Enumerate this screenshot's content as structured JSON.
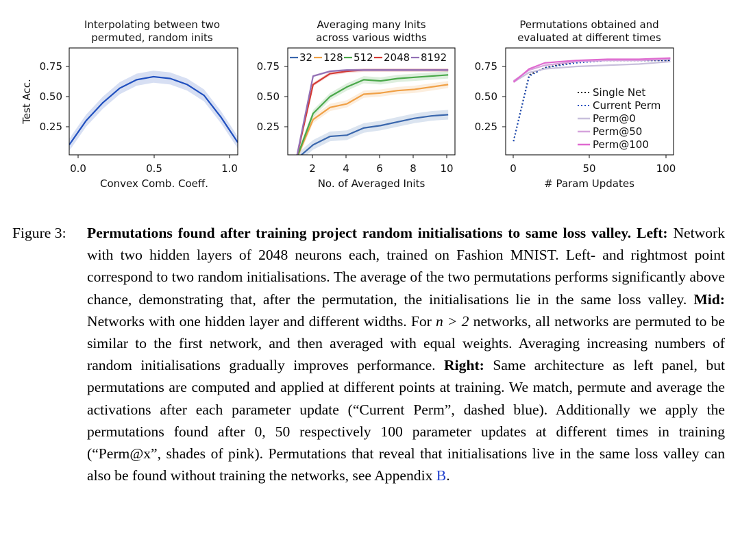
{
  "figure": {
    "panels": [
      {
        "title_line1": "Interpolating between two",
        "title_line2": "permuted, random inits",
        "xlabel": "Convex Comb. Coeff.",
        "ylabel": "Test Acc.",
        "xticks": [
          "0.0",
          "0.5",
          "1.0"
        ],
        "yticks": [
          "0.25",
          "0.50",
          "0.75"
        ]
      },
      {
        "title_line1": "Averaging many Inits",
        "title_line2": "across various widths",
        "xlabel": "No. of Averaged Inits",
        "xticks": [
          "2",
          "4",
          "6",
          "8",
          "10"
        ],
        "yticks": [
          "0.25",
          "0.50",
          "0.75"
        ]
      },
      {
        "title_line1": "Permutations obtained and",
        "title_line2": "evaluated at different times",
        "xlabel": "# Param Updates",
        "xticks": [
          "0",
          "50",
          "100"
        ],
        "yticks": [
          "0.25",
          "0.50",
          "0.75"
        ]
      }
    ]
  },
  "chart_data": [
    {
      "type": "line",
      "title": "Interpolating between two permuted, random inits",
      "xlabel": "Convex Comb. Coeff.",
      "ylabel": "Test Acc.",
      "xlim": [
        0,
        1
      ],
      "ylim": [
        0.0,
        0.88
      ],
      "series": [
        {
          "color": "#1f4fbf",
          "x": [
            0.0,
            0.1,
            0.2,
            0.3,
            0.4,
            0.5,
            0.6,
            0.7,
            0.8,
            0.9,
            1.0
          ],
          "y": [
            0.1,
            0.3,
            0.45,
            0.57,
            0.64,
            0.665,
            0.65,
            0.6,
            0.51,
            0.33,
            0.12
          ],
          "band": 0.05
        }
      ]
    },
    {
      "type": "line",
      "title": "Averaging many Inits across various widths",
      "xlabel": "No. of Averaged Inits",
      "xlim": [
        0.5,
        10.4
      ],
      "ylim": [
        0.0,
        0.88
      ],
      "legend_location": "top",
      "series": [
        {
          "name": "32",
          "color": "#3a67ad",
          "x": [
            1,
            2,
            3,
            4,
            5,
            6,
            7,
            8,
            9,
            10
          ],
          "y": [
            -0.02,
            0.1,
            0.17,
            0.18,
            0.24,
            0.26,
            0.29,
            0.32,
            0.34,
            0.35
          ],
          "band": 0.04
        },
        {
          "name": "128",
          "color": "#f0a046",
          "x": [
            1,
            2,
            3,
            4,
            5,
            6,
            7,
            8,
            9,
            10
          ],
          "y": [
            -0.02,
            0.31,
            0.41,
            0.44,
            0.52,
            0.53,
            0.55,
            0.56,
            0.58,
            0.6
          ],
          "band": 0.03
        },
        {
          "name": "512",
          "color": "#4aa84a",
          "x": [
            1,
            2,
            3,
            4,
            5,
            6,
            7,
            8,
            9,
            10
          ],
          "y": [
            -0.02,
            0.36,
            0.5,
            0.58,
            0.64,
            0.63,
            0.65,
            0.66,
            0.67,
            0.68
          ],
          "band": 0.03
        },
        {
          "name": "2048",
          "color": "#d43a34",
          "x": [
            1,
            2,
            3,
            4,
            5,
            6,
            7,
            8,
            9,
            10
          ],
          "y": [
            -0.02,
            0.6,
            0.69,
            0.71,
            0.72,
            0.72,
            0.72,
            0.72,
            0.72,
            0.72
          ],
          "band": 0.015
        },
        {
          "name": "8192",
          "color": "#9370b5",
          "x": [
            1,
            2,
            3,
            4,
            5,
            6,
            7,
            8,
            9,
            10
          ],
          "y": [
            -0.02,
            0.67,
            0.71,
            0.72,
            0.72,
            0.72,
            0.72,
            0.72,
            0.72,
            0.72
          ],
          "band": 0.01
        }
      ]
    },
    {
      "type": "line",
      "title": "Permutations obtained and evaluated at different times",
      "xlabel": "# Param Updates",
      "xlim": [
        -5,
        102
      ],
      "ylim": [
        0.0,
        0.88
      ],
      "legend_location": "lower right",
      "series": [
        {
          "name": "Single Net",
          "color": "#111111",
          "dash": "dotted",
          "x": [
            0,
            10,
            20,
            40,
            60,
            80,
            100
          ],
          "y": [
            0.13,
            0.68,
            0.74,
            0.79,
            0.8,
            0.8,
            0.8
          ]
        },
        {
          "name": "Current Perm",
          "color": "#1f4fbf",
          "dash": "dotted",
          "x": [
            0,
            10,
            20,
            40,
            60,
            80,
            100
          ],
          "y": [
            0.13,
            0.67,
            0.74,
            0.78,
            0.8,
            0.8,
            0.8
          ]
        },
        {
          "name": "Perm@0",
          "color": "#c8c0dc",
          "x": [
            0,
            10,
            20,
            40,
            60,
            80,
            100
          ],
          "y": [
            0.62,
            0.7,
            0.73,
            0.75,
            0.76,
            0.77,
            0.79
          ]
        },
        {
          "name": "Perm@50",
          "color": "#d6a3dc",
          "x": [
            0,
            10,
            20,
            40,
            60,
            80,
            100
          ],
          "y": [
            0.63,
            0.72,
            0.76,
            0.79,
            0.8,
            0.8,
            0.81
          ]
        },
        {
          "name": "Perm@100",
          "color": "#e06ad0",
          "x": [
            0,
            10,
            20,
            40,
            60,
            80,
            100
          ],
          "y": [
            0.62,
            0.73,
            0.78,
            0.8,
            0.81,
            0.81,
            0.82
          ]
        }
      ]
    }
  ],
  "caption": {
    "label": "Figure 3:",
    "bold_title": "Permutations found after training project random initialisations to same loss valley.",
    "left_label": "Left:",
    "left_text": "Network with two hidden layers of 2048 neurons each, trained on Fashion MNIST. Left- and rightmost point correspond to two random initialisations. The average of the two permutations performs significantly above chance, demonstrating that, after the permutation, the initialisations lie in the same loss valley.",
    "mid_label": "Mid:",
    "mid_text_a": "Networks with one hidden layer and different widths. For",
    "mid_math": "n > 2",
    "mid_text_b": "networks, all networks are permuted to be similar to the first network, and then averaged with equal weights. Averaging increasing numbers of random initialisations gradually improves performance.",
    "right_label": "Right:",
    "right_text_a": "Same architecture as left panel, but permutations are computed and applied at different points at training. We match, permute and average the activations after each parameter update (“Current Perm”, dashed blue). Additionally we apply the permutations found after 0, 50 respectively 100 parameter updates at different times in training (“Perm@x”, shades of pink). Permutations that reveal that initialisations live in the same loss valley can also be found without training the networks, see Appendix",
    "appendix_ref": "B",
    "end": "."
  }
}
